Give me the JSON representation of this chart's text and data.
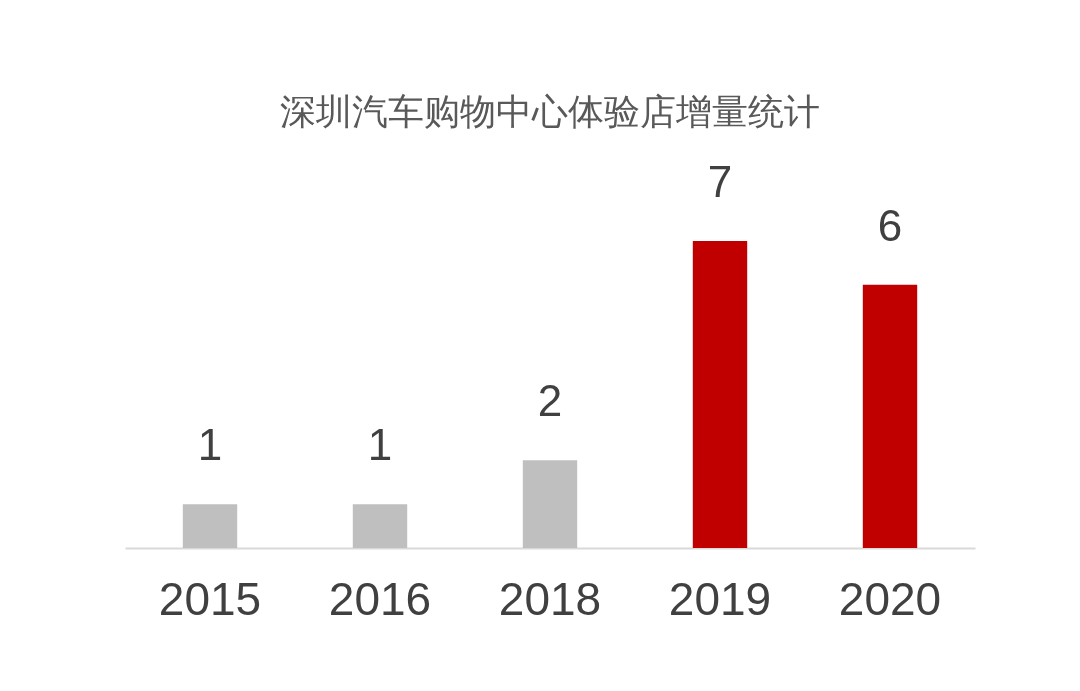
{
  "chart_data": {
    "type": "bar",
    "title": "深圳汽车购物中心体验店增量统计",
    "categories": [
      "2015",
      "2016",
      "2018",
      "2019",
      "2020"
    ],
    "values": [
      1,
      1,
      2,
      7,
      6
    ],
    "colors": [
      "#bfbfbf",
      "#bfbfbf",
      "#bfbfbf",
      "#c00000",
      "#c00000"
    ],
    "data_labels": true,
    "grid": false
  }
}
